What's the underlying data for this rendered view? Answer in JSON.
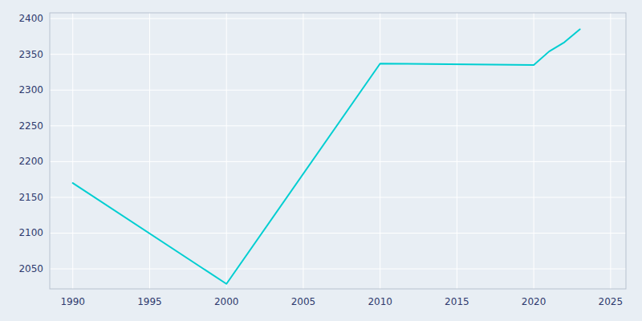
{
  "chart_data": {
    "type": "line",
    "x": [
      1990,
      2000,
      2010,
      2020,
      2021,
      2022,
      2023
    ],
    "values": [
      2170,
      2029,
      2337,
      2335,
      2354,
      2367,
      2385
    ],
    "color": "#00CED1",
    "xlim": [
      1988.5,
      2026
    ],
    "ylim": [
      2022,
      2408
    ],
    "xticks": [
      1990,
      1995,
      2000,
      2005,
      2010,
      2015,
      2020,
      2025
    ],
    "yticks": [
      2050,
      2100,
      2150,
      2200,
      2250,
      2300,
      2350,
      2400
    ],
    "grid": true
  }
}
